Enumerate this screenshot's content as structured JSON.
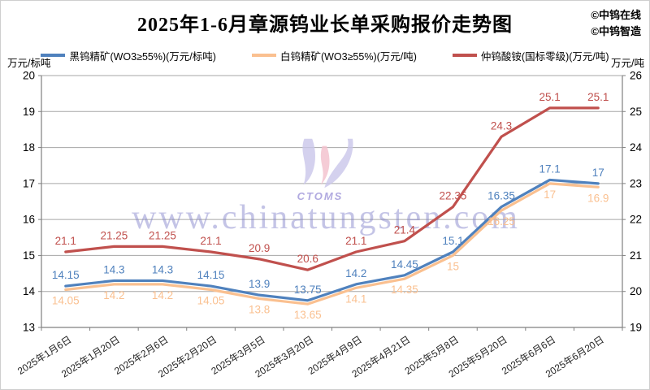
{
  "title": "2025年1-6月章源钨业长单采购报价走势图",
  "branding": {
    "line1": "©中钨在线",
    "line2": "©中钨智造"
  },
  "watermark": {
    "url_text": "www.chinatungsten.com",
    "logo_caption": "CTOMS"
  },
  "axis_units": {
    "left": "万元/标吨",
    "right": "万元/吨"
  },
  "colors": {
    "black_tungsten_blue": "#4F81BD",
    "white_tungsten_tan": "#FAC090",
    "apt_red": "#C0504D",
    "gridline": "#A6A6A6",
    "axis_line": "#808080",
    "watermark_text": "#7d7dc8"
  },
  "chart_data": {
    "type": "line",
    "title": "2025年1-6月章源钨业长单采购报价走势图",
    "xlabel": "",
    "grid": true,
    "legend_position": "top",
    "categories": [
      "2025年1月6日",
      "2025年1月20日",
      "2025年2月6日",
      "2025年2月20日",
      "2025年3月5日",
      "2025年3月20日",
      "2025年4月9日",
      "2025年4月21日",
      "2025年5月8日",
      "2025年5月20日",
      "2025年6月6日",
      "2025年6月20日"
    ],
    "series": [
      {
        "name": "黑钨精矿(WO3≥55%)(万元/标吨)",
        "axis": "left",
        "color": "#4F81BD",
        "label_position": "above",
        "values": [
          14.15,
          14.3,
          14.3,
          14.15,
          13.9,
          13.75,
          14.2,
          14.45,
          15.1,
          16.35,
          17.1,
          17
        ]
      },
      {
        "name": "白钨精矿(WO3≥55%)(万元/吨)",
        "axis": "left",
        "color": "#FAC090",
        "label_position": "below",
        "values": [
          14.05,
          14.2,
          14.2,
          14.05,
          13.8,
          13.65,
          14.1,
          14.35,
          15,
          16.25,
          17,
          16.9
        ]
      },
      {
        "name": "仲钨酸铵(国标零级)(万元/吨)",
        "axis": "right",
        "color": "#C0504D",
        "label_position": "above",
        "values": [
          21.1,
          21.25,
          21.25,
          21.1,
          20.9,
          20.6,
          21.1,
          21.4,
          22.35,
          24.3,
          25.1,
          25.1
        ]
      }
    ],
    "left_axis": {
      "label": "万元/标吨",
      "min": 13,
      "max": 20,
      "ticks": [
        20,
        19,
        18,
        17,
        16,
        15,
        14,
        13
      ]
    },
    "right_axis": {
      "label": "万元/吨",
      "min": 19,
      "max": 26,
      "ticks": [
        26,
        25,
        24,
        23,
        22,
        21,
        20,
        19
      ]
    }
  }
}
